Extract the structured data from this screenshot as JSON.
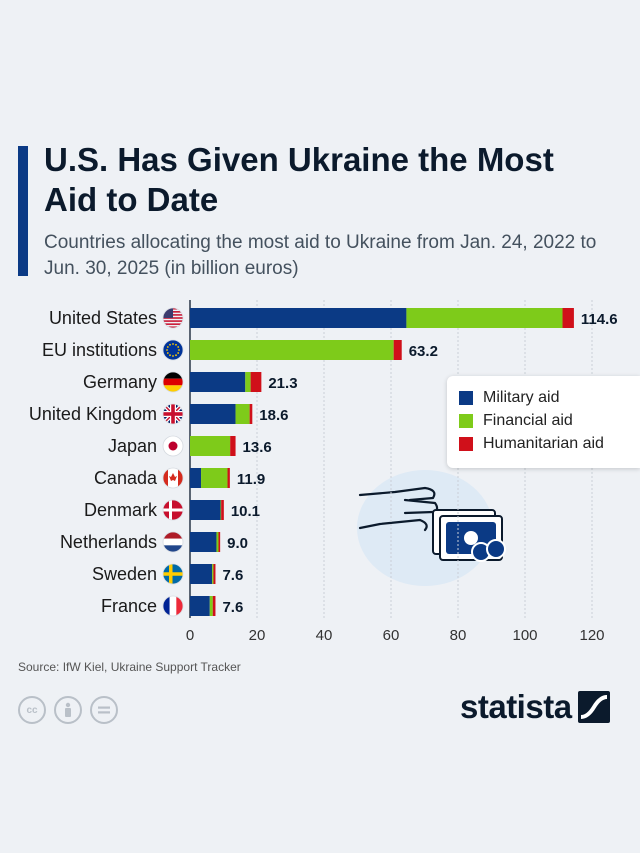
{
  "header": {
    "title": "U.S. Has Given Ukraine the Most Aid to Date",
    "subtitle": "Countries allocating the most aid to Ukraine from Jan. 24, 2022 to Jun. 30, 2025 (in billion euros)"
  },
  "legend": {
    "items": [
      {
        "label": "Military aid",
        "color": "#0b3a85"
      },
      {
        "label": "Financial aid",
        "color": "#7ecb1a"
      },
      {
        "label": "Humanitarian aid",
        "color": "#d0101a"
      }
    ]
  },
  "footer": {
    "source": "Source: IfW Kiel, Ukraine Support Tracker",
    "cc_icons": [
      "cc-icon",
      "attribution-icon",
      "no-derivatives-icon"
    ],
    "brand": "statista"
  },
  "chart_data": {
    "type": "bar",
    "orientation": "horizontal",
    "stacked": true,
    "categories": [
      "United States",
      "EU institutions",
      "Germany",
      "United Kingdom",
      "Japan",
      "Canada",
      "Denmark",
      "Netherlands",
      "Sweden",
      "France"
    ],
    "flags": [
      "us-flag-icon",
      "eu-flag-icon",
      "germany-flag-icon",
      "uk-flag-icon",
      "japan-flag-icon",
      "canada-flag-icon",
      "denmark-flag-icon",
      "netherlands-flag-icon",
      "sweden-flag-icon",
      "france-flag-icon"
    ],
    "series": [
      {
        "name": "Military aid",
        "color": "#0b3a85",
        "values": [
          64.6,
          0,
          16.5,
          13.6,
          0,
          3.3,
          9.1,
          7.9,
          6.6,
          5.9
        ]
      },
      {
        "name": "Financial aid",
        "color": "#7ecb1a",
        "values": [
          46.6,
          60.8,
          1.6,
          4.2,
          12.0,
          7.9,
          0.2,
          0.6,
          0.4,
          0.9
        ]
      },
      {
        "name": "Humanitarian aid",
        "color": "#d0101a",
        "values": [
          3.4,
          2.4,
          3.2,
          0.8,
          1.6,
          0.7,
          0.8,
          0.5,
          0.6,
          0.8
        ]
      }
    ],
    "totals": [
      "114.6",
      "63.2",
      "21.3",
      "18.6",
      "13.6",
      "11.9",
      "10.1",
      "9.0",
      "7.6",
      "7.6"
    ],
    "x_ticks": [
      "0",
      "20",
      "40",
      "60",
      "80",
      "100",
      "120"
    ],
    "xlim": [
      0,
      130
    ],
    "grid": true,
    "legend_position": "right"
  }
}
